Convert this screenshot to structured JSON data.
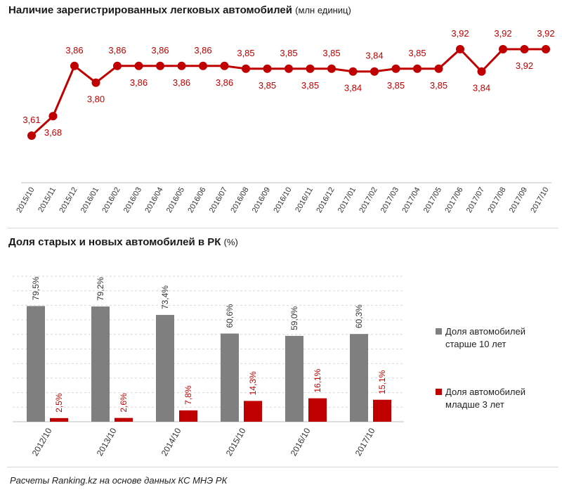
{
  "chart_data": [
    {
      "type": "line",
      "title": "Наличие зарегистрированных легковых автомобилей",
      "unit": "(млн единиц)",
      "categories": [
        "2015/10",
        "2015/11",
        "2015/12",
        "2016/01",
        "2016/02",
        "2016/03",
        "2016/04",
        "2016/05",
        "2016/06",
        "2016/07",
        "2016/08",
        "2016/09",
        "2016/10",
        "2016/11",
        "2016/12",
        "2017/01",
        "2017/02",
        "2017/03",
        "2017/04",
        "2017/05",
        "2017/06",
        "2017/07",
        "2017/08",
        "2017/09",
        "2017/10"
      ],
      "values": [
        3.61,
        3.68,
        3.86,
        3.8,
        3.86,
        3.86,
        3.86,
        3.86,
        3.86,
        3.86,
        3.85,
        3.85,
        3.85,
        3.85,
        3.85,
        3.84,
        3.84,
        3.85,
        3.85,
        3.85,
        3.92,
        3.84,
        3.92,
        3.92,
        3.92
      ],
      "labels": [
        "3,61",
        "3,68",
        "3,86",
        "3,80",
        "3,86",
        "3,86",
        "3,86",
        "3,86",
        "3,86",
        "3,86",
        "3,85",
        "3,85",
        "3,85",
        "3,85",
        "3,85",
        "3,84",
        "3,84",
        "3,85",
        "3,85",
        "3,85",
        "3,92",
        "3,84",
        "3,92",
        "3,92",
        "3,92"
      ],
      "label_position": [
        "above",
        "below",
        "above",
        "below",
        "above",
        "below",
        "above",
        "below",
        "above",
        "below",
        "above",
        "below",
        "above",
        "below",
        "above",
        "below",
        "above",
        "below",
        "above",
        "below",
        "above",
        "below",
        "above",
        "below",
        "above"
      ],
      "color": "#c00000",
      "grid": false
    },
    {
      "type": "bar",
      "title": "Доля старых и новых автомобилей в РК",
      "unit": "(%)",
      "categories": [
        "2012/10",
        "2013/10",
        "2014/10",
        "2015/10",
        "2016/10",
        "2017/10"
      ],
      "series": [
        {
          "name": "Доля автомобилей старше 10 лет",
          "values": [
            79.5,
            79.2,
            73.4,
            60.6,
            59.0,
            60.3
          ],
          "labels": [
            "79,5%",
            "79,2%",
            "73,4%",
            "60,6%",
            "59,0%",
            "60,3%"
          ],
          "color": "#7f7f7f"
        },
        {
          "name": "Доля автомобилей младше 3 лет",
          "values": [
            2.5,
            2.6,
            7.8,
            14.3,
            16.1,
            15.1
          ],
          "labels": [
            "2,5%",
            "2,6%",
            "7,8%",
            "14,3%",
            "16,1%",
            "15,1%"
          ],
          "color": "#c00000"
        }
      ],
      "ylim": [
        0,
        100
      ],
      "grid": true,
      "legend_position": "right"
    }
  ],
  "legend": {
    "old_line1": "Доля автомобилей",
    "old_line2": "старше 10 лет",
    "new_line1": "Доля автомобилей",
    "new_line2": "младше 3 лет"
  },
  "source": "Расчеты Ranking.kz на основе данных КС МНЭ РК"
}
